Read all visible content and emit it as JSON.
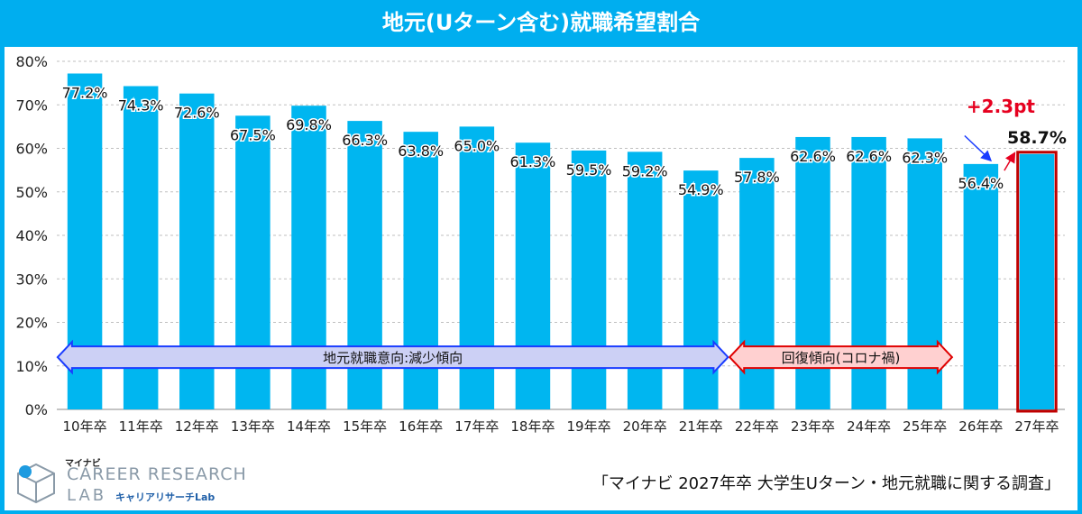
{
  "title": "地元(Uターン含む)就職希望割合",
  "chart_data": {
    "type": "bar",
    "categories": [
      "10年卒",
      "11年卒",
      "12年卒",
      "13年卒",
      "14年卒",
      "15年卒",
      "16年卒",
      "17年卒",
      "18年卒",
      "19年卒",
      "20年卒",
      "21年卒",
      "22年卒",
      "23年卒",
      "24年卒",
      "25年卒",
      "26年卒",
      "27年卒"
    ],
    "values": [
      77.2,
      74.3,
      72.6,
      67.5,
      69.8,
      66.3,
      63.8,
      65.0,
      61.3,
      59.5,
      59.2,
      54.9,
      57.8,
      62.6,
      62.6,
      62.3,
      56.4,
      58.7
    ],
    "value_labels": [
      "77.2%",
      "74.3%",
      "72.6%",
      "67.5%",
      "69.8%",
      "66.3%",
      "63.8%",
      "65.0%",
      "61.3%",
      "59.5%",
      "59.2%",
      "54.9%",
      "57.8%",
      "62.6%",
      "62.6%",
      "62.3%",
      "56.4%",
      "58.7%"
    ],
    "y_ticks": [
      "0%",
      "10%",
      "20%",
      "30%",
      "40%",
      "50%",
      "60%",
      "70%",
      "80%"
    ],
    "ylim": [
      0,
      80
    ],
    "grid": true,
    "bar_color": "#00b6f0",
    "highlight_index": 17,
    "highlight_border_color": "#c00000",
    "change_label": "+2.3pt",
    "change_color": "#e6001f",
    "annotations": [
      {
        "text": "地元就職意向:減少傾向",
        "from": 0,
        "to": 11,
        "fill": "#ccd0f5",
        "stroke": "#1a3cff"
      },
      {
        "text": "回復傾向(コロナ禍)",
        "from": 12,
        "to": 15,
        "fill": "#ffd0d0",
        "stroke": "#e00000"
      }
    ]
  },
  "footer": {
    "brand_small": "マイナビ",
    "brand_main": "CAREER RESEARCH",
    "brand_lab": "LAB",
    "brand_sub": "キャリアリサーチLab",
    "source": "「マイナビ 2027年卒 大学生Uターン・地元就職に関する調査」"
  }
}
